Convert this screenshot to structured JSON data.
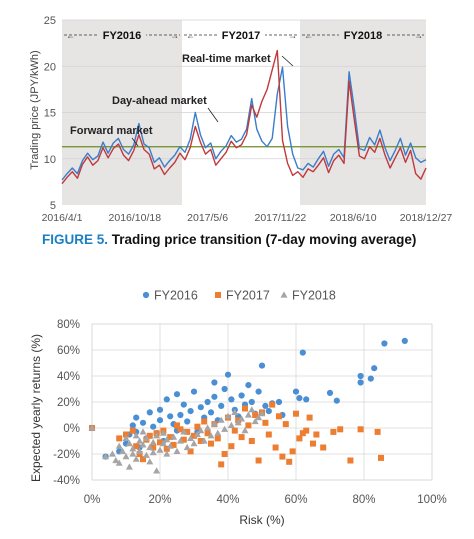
{
  "caption": {
    "label": "FIGURE 5.",
    "text": "Trading price transition (7-day moving average)"
  },
  "chart_data": [
    {
      "type": "line",
      "title": "",
      "ylabel": "Trading price (JPY/kWh)",
      "ylim": [
        5,
        25
      ],
      "yticks": [
        "5",
        "10",
        "15",
        "20",
        "25"
      ],
      "xticks": [
        "2016/4/1",
        "2016/10/18",
        "2017/5/6",
        "2017/11/22",
        "2018/6/10",
        "2018/12/27"
      ],
      "periods": [
        "FY2016",
        "FY2017",
        "FY2018"
      ],
      "series": [
        {
          "name": "Forward market",
          "color": "#6b8e23",
          "values": [
            11.3,
            11.3
          ]
        },
        {
          "name": "Day-ahead market",
          "color": "#3a7dc9",
          "values": [
            7.7,
            8.4,
            9.0,
            8.4,
            9.8,
            10.6,
            9.9,
            10.3,
            11.8,
            10.6,
            11.7,
            12.2,
            11.0,
            10.5,
            11.5,
            13.8,
            11.6,
            11.2,
            9.6,
            10.1,
            9.1,
            9.8,
            10.4,
            11.3,
            10.7,
            12.1,
            15.0,
            12.6,
            11.2,
            11.7,
            10.0,
            10.8,
            11.4,
            12.5,
            11.8,
            12.1,
            13.2,
            16.5,
            13.2,
            11.9,
            11.3,
            12.2,
            17.0,
            19.9,
            13.5,
            10.5,
            9.0,
            8.8,
            9.5,
            9.1,
            10.0,
            10.8,
            9.2,
            10.5,
            11.0,
            10.1,
            19.4,
            15.5,
            11.1,
            10.9,
            12.3,
            11.5,
            13.1,
            11.2,
            9.8,
            10.9,
            12.2,
            10.4,
            11.7,
            10.1,
            9.6,
            9.9
          ]
        },
        {
          "name": "Real-time market",
          "color": "#c0393b",
          "values": [
            7.3,
            8.0,
            8.6,
            7.9,
            9.4,
            10.2,
            9.3,
            9.8,
            11.2,
            10.1,
            11.1,
            11.6,
            10.4,
            9.8,
            10.9,
            12.6,
            11.0,
            10.5,
            8.9,
            9.3,
            8.3,
            9.0,
            9.6,
            10.6,
            9.9,
            11.2,
            13.5,
            11.8,
            10.5,
            11.0,
            9.3,
            10.0,
            10.7,
            11.9,
            11.2,
            11.5,
            12.6,
            15.8,
            14.5,
            16.2,
            17.5,
            19.6,
            21.7,
            12.0,
            9.5,
            8.2,
            8.6,
            8.0,
            8.9,
            8.6,
            9.3,
            10.1,
            8.5,
            9.8,
            10.4,
            9.5,
            18.4,
            14.3,
            10.3,
            10.0,
            11.3,
            10.7,
            12.2,
            10.4,
            9.0,
            10.1,
            11.2,
            9.6,
            10.9,
            8.4,
            7.8,
            9.0
          ]
        }
      ],
      "annotations": [
        "Real-time market",
        "Day-ahead market",
        "Forward market"
      ]
    },
    {
      "type": "scatter",
      "title": "",
      "xlabel": "Risk (%)",
      "ylabel": "Expected yearly returns (%)",
      "xlim": [
        0,
        100
      ],
      "ylim": [
        -40,
        80
      ],
      "xticks": [
        "0%",
        "20%",
        "40%",
        "60%",
        "80%",
        "100%"
      ],
      "yticks": [
        "-40%",
        "-20%",
        "0%",
        "20%",
        "40%",
        "60%",
        "80%"
      ],
      "legend": "top",
      "series": [
        {
          "name": "FY2016",
          "color": "#4a8fd4",
          "marker": "circle",
          "points": [
            [
              0,
              0
            ],
            [
              4,
              -22
            ],
            [
              8,
              -18
            ],
            [
              10,
              -12
            ],
            [
              11,
              -5
            ],
            [
              12,
              2
            ],
            [
              13,
              -3
            ],
            [
              13,
              8
            ],
            [
              14,
              -15
            ],
            [
              15,
              4
            ],
            [
              16,
              -8
            ],
            [
              17,
              12
            ],
            [
              18,
              1
            ],
            [
              19,
              -4
            ],
            [
              20,
              14
            ],
            [
              20,
              6
            ],
            [
              21,
              -10
            ],
            [
              22,
              22
            ],
            [
              23,
              9
            ],
            [
              24,
              3
            ],
            [
              25,
              26
            ],
            [
              25,
              -2
            ],
            [
              26,
              10
            ],
            [
              27,
              18
            ],
            [
              28,
              5
            ],
            [
              29,
              13
            ],
            [
              30,
              28
            ],
            [
              31,
              -3
            ],
            [
              32,
              16
            ],
            [
              33,
              8
            ],
            [
              34,
              20
            ],
            [
              35,
              12
            ],
            [
              36,
              35
            ],
            [
              36,
              24
            ],
            [
              37,
              6
            ],
            [
              38,
              17
            ],
            [
              39,
              30
            ],
            [
              40,
              41
            ],
            [
              41,
              22
            ],
            [
              42,
              14
            ],
            [
              43,
              9
            ],
            [
              44,
              25
            ],
            [
              45,
              18
            ],
            [
              46,
              33
            ],
            [
              47,
              20
            ],
            [
              48,
              11
            ],
            [
              49,
              28
            ],
            [
              50,
              48
            ],
            [
              51,
              17
            ],
            [
              52,
              13
            ],
            [
              53,
              19
            ],
            [
              55,
              20
            ],
            [
              56,
              10
            ],
            [
              60,
              28
            ],
            [
              61,
              23
            ],
            [
              62,
              58
            ],
            [
              63,
              22
            ],
            [
              70,
              27
            ],
            [
              72,
              21
            ],
            [
              79,
              40
            ],
            [
              79,
              35
            ],
            [
              82,
              38
            ],
            [
              83,
              46
            ],
            [
              86,
              65
            ],
            [
              92,
              67
            ]
          ]
        },
        {
          "name": "FY2017",
          "color": "#ed7d31",
          "marker": "square",
          "points": [
            [
              0,
              0
            ],
            [
              8,
              -8
            ],
            [
              10,
              -5
            ],
            [
              12,
              -2
            ],
            [
              13,
              -14
            ],
            [
              14,
              -20
            ],
            [
              15,
              -24
            ],
            [
              16,
              -9
            ],
            [
              17,
              -6
            ],
            [
              18,
              -15
            ],
            [
              19,
              -4
            ],
            [
              20,
              -11
            ],
            [
              21,
              -2
            ],
            [
              22,
              -16
            ],
            [
              23,
              -7
            ],
            [
              24,
              -13
            ],
            [
              25,
              2
            ],
            [
              26,
              -1
            ],
            [
              27,
              -9
            ],
            [
              28,
              -3
            ],
            [
              29,
              -18
            ],
            [
              30,
              -6
            ],
            [
              31,
              1
            ],
            [
              32,
              -10
            ],
            [
              33,
              5
            ],
            [
              34,
              -4
            ],
            [
              35,
              -12
            ],
            [
              36,
              3
            ],
            [
              37,
              -8
            ],
            [
              38,
              -28
            ],
            [
              39,
              -20
            ],
            [
              40,
              8
            ],
            [
              41,
              -14
            ],
            [
              42,
              -2
            ],
            [
              43,
              6
            ],
            [
              44,
              -7
            ],
            [
              45,
              15
            ],
            [
              46,
              2
            ],
            [
              47,
              -10
            ],
            [
              48,
              10
            ],
            [
              49,
              -25
            ],
            [
              50,
              12
            ],
            [
              51,
              4
            ],
            [
              52,
              -5
            ],
            [
              53,
              18
            ],
            [
              54,
              -15
            ],
            [
              55,
              9
            ],
            [
              56,
              -22
            ],
            [
              57,
              3
            ],
            [
              58,
              -26
            ],
            [
              59,
              -18
            ],
            [
              60,
              11
            ],
            [
              61,
              -8
            ],
            [
              62,
              -4
            ],
            [
              63,
              -2
            ],
            [
              64,
              8
            ],
            [
              65,
              -12
            ],
            [
              66,
              -5
            ],
            [
              68,
              -15
            ],
            [
              71,
              -3
            ],
            [
              73,
              -1
            ],
            [
              76,
              -25
            ],
            [
              79,
              -1
            ],
            [
              84,
              -3
            ],
            [
              85,
              -23
            ]
          ]
        },
        {
          "name": "FY2018",
          "color": "#a5a5a5",
          "marker": "triangle",
          "points": [
            [
              0,
              0
            ],
            [
              4,
              -22
            ],
            [
              6,
              -20
            ],
            [
              7,
              -25
            ],
            [
              8,
              -14
            ],
            [
              8,
              -27
            ],
            [
              9,
              -18
            ],
            [
              10,
              -22
            ],
            [
              10,
              -8
            ],
            [
              11,
              -30
            ],
            [
              11,
              -12
            ],
            [
              12,
              -16
            ],
            [
              12,
              -20
            ],
            [
              13,
              -24
            ],
            [
              13,
              -6
            ],
            [
              14,
              -10
            ],
            [
              14,
              -18
            ],
            [
              15,
              -13
            ],
            [
              15,
              -3
            ],
            [
              16,
              -21
            ],
            [
              16,
              -8
            ],
            [
              17,
              -26
            ],
            [
              17,
              -15
            ],
            [
              18,
              -11
            ],
            [
              18,
              -19
            ],
            [
              19,
              -6
            ],
            [
              19,
              -33
            ],
            [
              20,
              -17
            ],
            [
              21,
              -12
            ],
            [
              21,
              -4
            ],
            [
              22,
              -9
            ],
            [
              22,
              -20
            ],
            [
              23,
              -14
            ],
            [
              24,
              -7
            ],
            [
              25,
              -18
            ],
            [
              26,
              -10
            ],
            [
              27,
              -3
            ],
            [
              28,
              -15
            ],
            [
              29,
              -8
            ],
            [
              30,
              -12
            ],
            [
              31,
              -5
            ],
            [
              32,
              -2
            ],
            [
              33,
              -10
            ],
            [
              34,
              0
            ],
            [
              35,
              -6
            ],
            [
              36,
              3
            ],
            [
              37,
              -4
            ],
            [
              38,
              6
            ],
            [
              39,
              -1
            ],
            [
              40,
              9
            ],
            [
              41,
              2
            ],
            [
              42,
              12
            ],
            [
              43,
              4
            ],
            [
              44,
              7
            ],
            [
              45,
              -2
            ],
            [
              46,
              10
            ],
            [
              47,
              14
            ],
            [
              48,
              5
            ],
            [
              49,
              8
            ],
            [
              50,
              11
            ]
          ]
        }
      ]
    }
  ]
}
